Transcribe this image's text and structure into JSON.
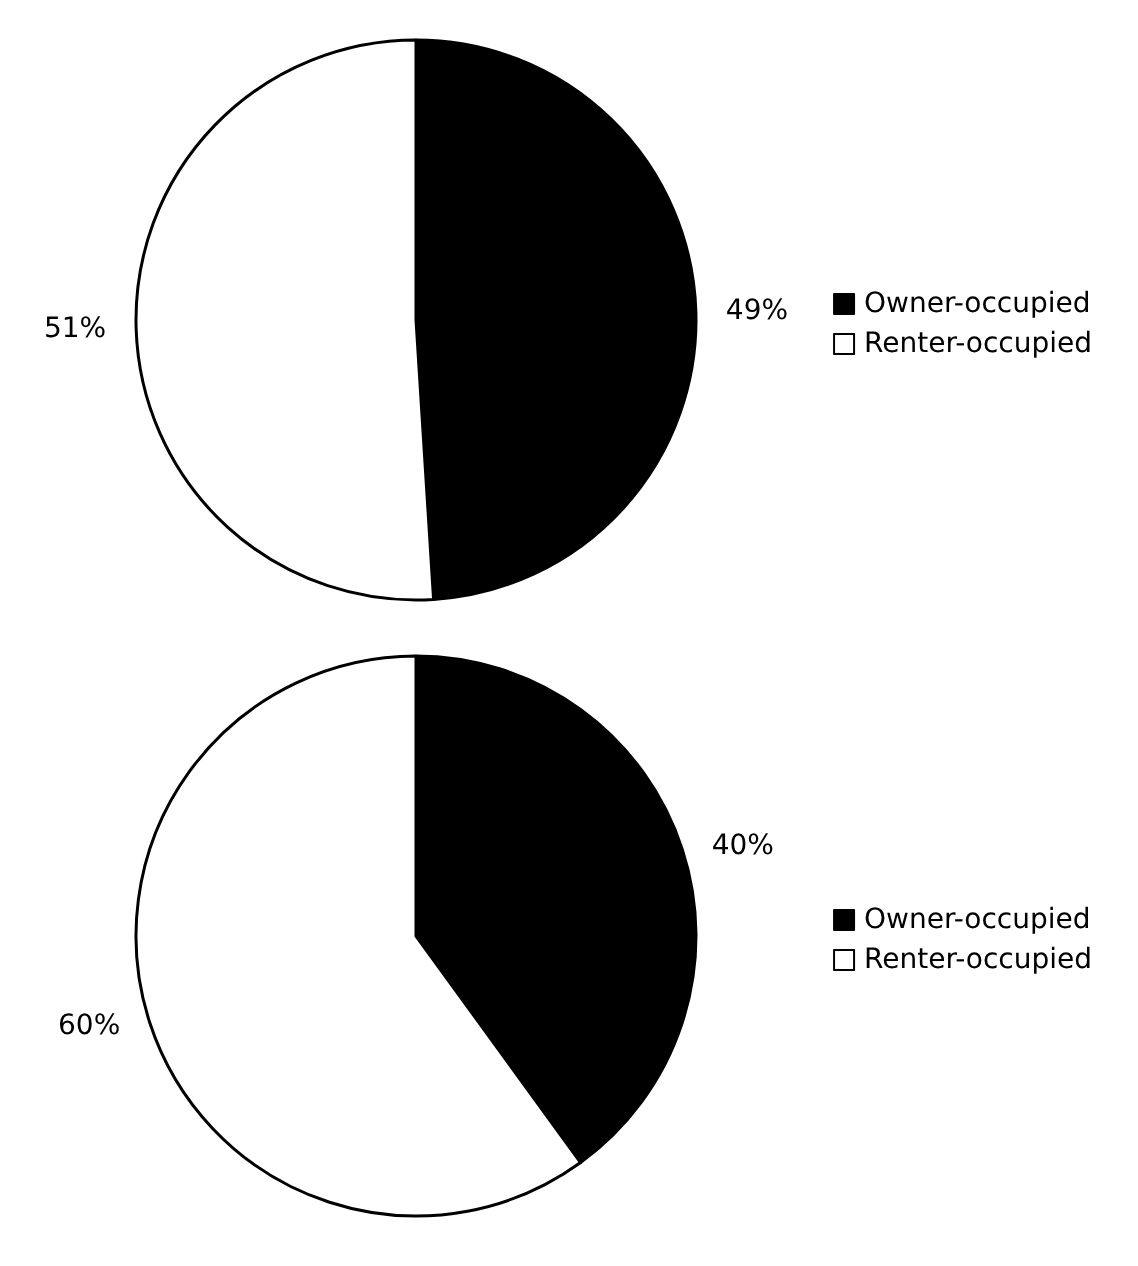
{
  "chart_data": [
    {
      "type": "pie",
      "categories": [
        "Owner-occupied",
        "Renter-occupied"
      ],
      "values": [
        49,
        51
      ],
      "colors": [
        "#000000",
        "#ffffff"
      ],
      "value_labels": [
        "49%",
        "51%"
      ],
      "legend": "right"
    },
    {
      "type": "pie",
      "categories": [
        "Owner-occupied",
        "Renter-occupied"
      ],
      "values": [
        40,
        60
      ],
      "colors": [
        "#000000",
        "#ffffff"
      ],
      "value_labels": [
        "40%",
        "60%"
      ],
      "legend": "right"
    }
  ]
}
